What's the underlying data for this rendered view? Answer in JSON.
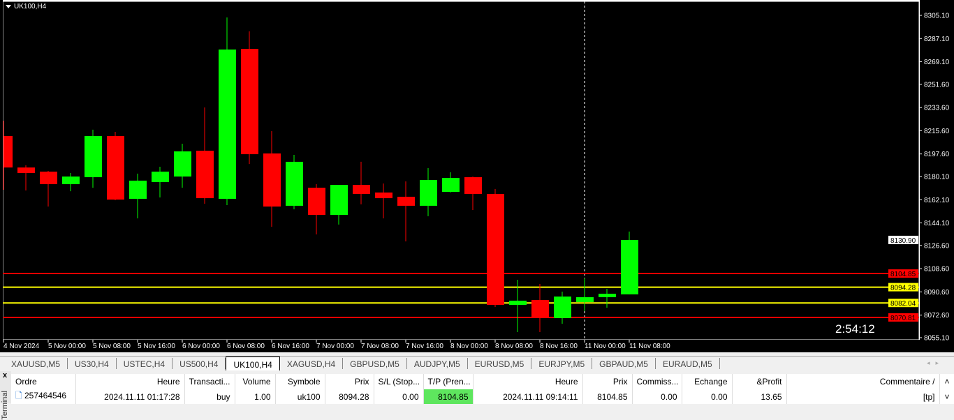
{
  "chart": {
    "title": "UK100,H4",
    "timer": "2:54:12",
    "colors": {
      "bull": "#00ff00",
      "bear": "#ff0000",
      "bg": "#000000",
      "tp_line": "#ff0000",
      "entry_line": "#ffff00"
    }
  },
  "chart_data": {
    "type": "candlestick",
    "title": "UK100,H4",
    "ylim": [
      8055.1,
      8305.1
    ],
    "y_ticks": [
      "8305.10",
      "8287.10",
      "8269.10",
      "8251.60",
      "8233.60",
      "8215.60",
      "8197.60",
      "8180.10",
      "8162.10",
      "8144.10",
      "8126.60",
      "8108.60",
      "8090.60",
      "8072.60",
      "8055.10"
    ],
    "x_labels": [
      "4 Nov 2024",
      "5 Nov 00:00",
      "5 Nov 08:00",
      "5 Nov 16:00",
      "6 Nov 00:00",
      "6 Nov 08:00",
      "6 Nov 16:00",
      "7 Nov 00:00",
      "7 Nov 08:00",
      "7 Nov 16:00",
      "8 Nov 00:00",
      "8 Nov 08:00",
      "8 Nov 16:00",
      "11 Nov 00:00",
      "11 Nov 08:00"
    ],
    "ohlc": [
      [
        8211.5,
        8223.4,
        8169.8,
        8187.1
      ],
      [
        8187.1,
        8188.8,
        8169.3,
        8182.8
      ],
      [
        8183.9,
        8184.4,
        8156.8,
        8174.2
      ],
      [
        8174.2,
        8182.8,
        8168.7,
        8180.1
      ],
      [
        8179.6,
        8216.4,
        8171.4,
        8211.5
      ],
      [
        8211.5,
        8214.7,
        8161.7,
        8162.2
      ],
      [
        8162.8,
        8182.3,
        8147.6,
        8176.9
      ],
      [
        8175.8,
        8187.7,
        8163.9,
        8183.9
      ],
      [
        8180.1,
        8205.5,
        8171.4,
        8199.6
      ],
      [
        8200.1,
        8233.7,
        8159.0,
        8163.3
      ],
      [
        8162.8,
        8303.5,
        8157.9,
        8278.6
      ],
      [
        8279.1,
        8292.7,
        8189.8,
        8197.4
      ],
      [
        8198.0,
        8215.3,
        8141.1,
        8156.8
      ],
      [
        8157.4,
        8196.9,
        8154.7,
        8191.5
      ],
      [
        8171.4,
        8174.2,
        8135.2,
        8150.3
      ],
      [
        8150.3,
        8173.6,
        8142.8,
        8173.6
      ],
      [
        8173.6,
        8191.5,
        8158.5,
        8166.6
      ],
      [
        8167.7,
        8174.7,
        8147.6,
        8163.3
      ],
      [
        8164.4,
        8176.3,
        8129.8,
        8157.4
      ],
      [
        8157.4,
        8186.6,
        8149.3,
        8177.4
      ],
      [
        8168.2,
        8183.4,
        8167.7,
        8179.0
      ],
      [
        8179.6,
        8180.0,
        8154.1,
        8166.6
      ],
      [
        8166.6,
        8170.4,
        8078.9,
        8080.5
      ],
      [
        8080.5,
        8100.0,
        8059.4,
        8083.8
      ],
      [
        8084.3,
        8096.8,
        8059.4,
        8070.8
      ],
      [
        8070.3,
        8090.8,
        8065.9,
        8087.0
      ],
      [
        8082.7,
        8101.1,
        8075.7,
        8086.5
      ],
      [
        8086.5,
        8093.0,
        8078.4,
        8089.2
      ],
      [
        8088.7,
        8137.4,
        8088.7,
        8130.9
      ]
    ],
    "hlines": [
      {
        "price": "8104.85",
        "color": "#ff0000"
      },
      {
        "price": "8094.28",
        "color": "#ffff00"
      },
      {
        "price": "8082.04",
        "color": "#ffff00"
      },
      {
        "price": "8070.81",
        "color": "#ff0000"
      }
    ],
    "current_price": "8130.90"
  },
  "tabs": [
    "XAUUSD,M5",
    "US30,H4",
    "USTEC,H4",
    "US500,H4",
    "UK100,H4",
    "XAGUSD,H4",
    "GBPUSD,M5",
    "AUDJPY,M5",
    "EURUSD,M5",
    "EURJPY,M5",
    "GBPAUD,M5",
    "EURAUD,M5"
  ],
  "active_tab": "UK100,H4",
  "terminal": {
    "close": "x",
    "label": "Terminal",
    "columns": [
      "Ordre",
      "Heure",
      "Transacti...",
      "Volume",
      "Symbole",
      "Prix",
      "S/L (Stop...",
      "T/P (Pren...",
      "Heure",
      "Prix",
      "Commiss...",
      "Echange",
      "&Profit",
      "Commentaire  /"
    ],
    "rows": [
      [
        "257464546",
        "2024.11.11 01:17:28",
        "buy",
        "1.00",
        "uk100",
        "8094.28",
        "0.00",
        "8104.85",
        "2024.11.11 09:14:11",
        "8104.85",
        "0.00",
        "0.00",
        "13.65",
        "[tp]"
      ]
    ]
  }
}
